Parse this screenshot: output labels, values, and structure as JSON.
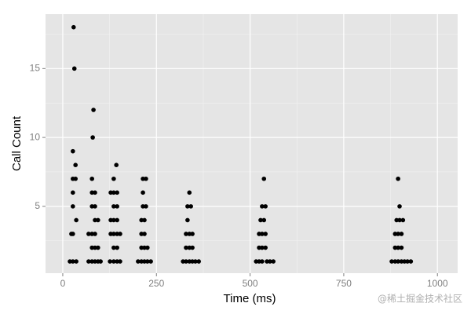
{
  "chart_data": {
    "type": "scatter",
    "xlabel": "Time (ms)",
    "ylabel": "Call Count",
    "watermark": "@稀土掘金技术社区",
    "color": "#000000",
    "panel_color": "#e5e5e5",
    "grid": true,
    "xlim": [
      -46,
      1054
    ],
    "xticks": [
      0,
      250,
      500,
      750,
      1000
    ],
    "minor_xticks": [
      125,
      375,
      625,
      875
    ],
    "ylim": [
      0.15,
      18.95
    ],
    "yticks": [
      5,
      10,
      15
    ],
    "minor_yticks": [
      2.5,
      7.5,
      12.5,
      17.5
    ],
    "x": [
      19,
      27,
      36,
      23,
      27,
      36,
      27,
      27,
      27,
      34,
      34,
      27,
      31,
      29,
      69,
      78,
      86,
      94,
      101,
      78,
      86,
      94,
      69,
      78,
      86,
      86,
      94,
      78,
      86,
      78,
      86,
      78,
      80,
      82,
      126,
      136,
      145,
      153,
      136,
      145,
      128,
      136,
      145,
      153,
      128,
      136,
      145,
      136,
      145,
      128,
      136,
      145,
      136,
      143,
      201,
      210,
      218,
      226,
      235,
      210,
      218,
      226,
      210,
      218,
      210,
      218,
      214,
      222,
      214,
      214,
      222,
      321,
      329,
      338,
      346,
      354,
      363,
      329,
      338,
      346,
      329,
      338,
      346,
      333,
      333,
      342,
      338,
      516,
      524,
      532,
      545,
      553,
      562,
      524,
      532,
      541,
      524,
      532,
      541,
      528,
      537,
      532,
      541,
      537,
      878,
      887,
      895,
      904,
      912,
      920,
      929,
      887,
      895,
      904,
      887,
      895,
      904,
      891,
      899,
      908,
      899,
      895
    ],
    "y": [
      1,
      1,
      1,
      3,
      3,
      4,
      5,
      6,
      7,
      7,
      8,
      9,
      15,
      18,
      1,
      1,
      1,
      1,
      1,
      2,
      2,
      2,
      3,
      3,
      3,
      4,
      4,
      5,
      5,
      6,
      6,
      7,
      10,
      12,
      1,
      1,
      1,
      1,
      2,
      2,
      3,
      3,
      3,
      3,
      4,
      4,
      4,
      5,
      5,
      6,
      6,
      6,
      7,
      8,
      1,
      1,
      1,
      1,
      1,
      2,
      2,
      2,
      3,
      3,
      4,
      4,
      5,
      5,
      6,
      7,
      7,
      1,
      1,
      1,
      1,
      1,
      1,
      2,
      2,
      2,
      3,
      3,
      3,
      4,
      5,
      5,
      6,
      1,
      1,
      1,
      1,
      1,
      1,
      2,
      2,
      2,
      3,
      3,
      3,
      4,
      4,
      5,
      5,
      7,
      1,
      1,
      1,
      1,
      1,
      1,
      1,
      2,
      2,
      2,
      3,
      3,
      3,
      4,
      4,
      4,
      5,
      7
    ]
  }
}
